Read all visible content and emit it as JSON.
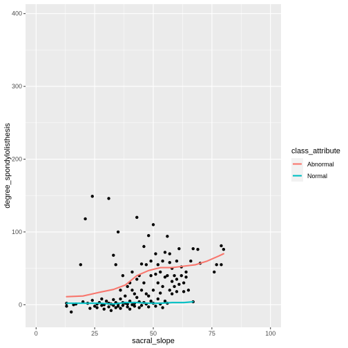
{
  "chart_data": {
    "type": "scatter",
    "xlabel": "sacral_slope",
    "ylabel": "degree_spondylolisthesis",
    "xlim": [
      -4.5,
      104.5
    ],
    "ylim": [
      -31,
      413
    ],
    "x_ticks": [
      0,
      25,
      50,
      75,
      100
    ],
    "x_tick_labels": [
      "0",
      "25",
      "50",
      "75",
      "100"
    ],
    "y_ticks": [
      0,
      100,
      200,
      300,
      400
    ],
    "y_tick_labels": [
      "0",
      "100",
      "200",
      "300",
      "400"
    ],
    "grid": true,
    "legend": {
      "title": "class_attribute",
      "placement": "right",
      "entries": [
        "Abnormal",
        "Normal"
      ]
    },
    "points": [
      [
        13,
        -2
      ],
      [
        13,
        2
      ],
      [
        15,
        -10
      ],
      [
        16,
        0
      ],
      [
        17,
        1
      ],
      [
        19,
        55
      ],
      [
        20,
        4
      ],
      [
        21,
        118
      ],
      [
        22,
        2
      ],
      [
        23,
        -5
      ],
      [
        24,
        149
      ],
      [
        24,
        6
      ],
      [
        25,
        -2
      ],
      [
        26,
        1
      ],
      [
        26,
        -4
      ],
      [
        27,
        3
      ],
      [
        28,
        -1
      ],
      [
        28,
        8
      ],
      [
        29,
        0
      ],
      [
        29,
        -6
      ],
      [
        30,
        5
      ],
      [
        31,
        146
      ],
      [
        31,
        2
      ],
      [
        31,
        -3
      ],
      [
        32,
        -8
      ],
      [
        32,
        1
      ],
      [
        33,
        68
      ],
      [
        33,
        7
      ],
      [
        33,
        -1
      ],
      [
        34,
        3
      ],
      [
        34,
        -4
      ],
      [
        34,
        55
      ],
      [
        35,
        1
      ],
      [
        35,
        100
      ],
      [
        35,
        -2
      ],
      [
        36,
        8
      ],
      [
        36,
        20
      ],
      [
        36,
        -5
      ],
      [
        37,
        3
      ],
      [
        37,
        40
      ],
      [
        37,
        -1
      ],
      [
        38,
        12
      ],
      [
        38,
        2
      ],
      [
        39,
        -3
      ],
      [
        39,
        25
      ],
      [
        39,
        1
      ],
      [
        40,
        30
      ],
      [
        40,
        -6
      ],
      [
        40,
        5
      ],
      [
        41,
        45
      ],
      [
        41,
        0
      ],
      [
        41,
        20
      ],
      [
        42,
        2
      ],
      [
        42,
        15
      ],
      [
        42,
        -2
      ],
      [
        43,
        10
      ],
      [
        43,
        120
      ],
      [
        43,
        35
      ],
      [
        44,
        4
      ],
      [
        44,
        40
      ],
      [
        44,
        -4
      ],
      [
        45,
        20
      ],
      [
        45,
        56
      ],
      [
        45,
        -1
      ],
      [
        46,
        30
      ],
      [
        46,
        80
      ],
      [
        46,
        3
      ],
      [
        47,
        15
      ],
      [
        47,
        55
      ],
      [
        47,
        1
      ],
      [
        48,
        12
      ],
      [
        48,
        95
      ],
      [
        48,
        -3
      ],
      [
        49,
        40
      ],
      [
        49,
        60
      ],
      [
        49,
        5
      ],
      [
        50,
        20
      ],
      [
        50,
        110
      ],
      [
        50,
        2
      ],
      [
        51,
        42
      ],
      [
        51,
        70
      ],
      [
        51,
        -2
      ],
      [
        52,
        30
      ],
      [
        52,
        55
      ],
      [
        52,
        8
      ],
      [
        53,
        16
      ],
      [
        53,
        45
      ],
      [
        53,
        1
      ],
      [
        54,
        60
      ],
      [
        54,
        25
      ],
      [
        54,
        -4
      ],
      [
        55,
        72
      ],
      [
        55,
        38
      ],
      [
        55,
        5
      ],
      [
        56,
        40
      ],
      [
        56,
        94
      ],
      [
        56,
        2
      ],
      [
        57,
        20
      ],
      [
        57,
        58
      ],
      [
        57,
        70
      ],
      [
        58,
        32
      ],
      [
        58,
        15
      ],
      [
        58,
        50
      ],
      [
        59,
        40
      ],
      [
        59,
        25
      ],
      [
        60,
        35
      ],
      [
        60,
        60
      ],
      [
        60,
        18
      ],
      [
        61,
        77
      ],
      [
        61,
        28
      ],
      [
        62,
        40
      ],
      [
        62,
        52
      ],
      [
        63,
        30
      ],
      [
        63,
        18
      ],
      [
        64,
        45
      ],
      [
        64,
        38
      ],
      [
        65,
        20
      ],
      [
        66,
        60
      ],
      [
        67,
        4
      ],
      [
        67,
        77
      ],
      [
        69,
        76
      ],
      [
        70,
        57
      ],
      [
        76,
        45
      ],
      [
        77,
        55
      ],
      [
        79,
        81
      ],
      [
        79,
        55
      ],
      [
        80,
        76
      ]
    ],
    "series": [
      {
        "name": "Abnormal",
        "color": "#F8766D",
        "x": [
          13,
          20,
          27,
          33,
          38,
          43,
          48,
          53,
          58,
          63,
          68,
          73,
          78,
          80
        ],
        "y": [
          11,
          12,
          17,
          21,
          27,
          40,
          47,
          51,
          51,
          53,
          55,
          60,
          67,
          70
        ]
      },
      {
        "name": "Normal",
        "color": "#00BFC4",
        "x": [
          13,
          20,
          27,
          33,
          38,
          43,
          48,
          53,
          58,
          63,
          67
        ],
        "y": [
          2,
          2,
          2,
          1,
          3,
          3,
          2,
          2,
          3,
          3,
          4
        ]
      }
    ]
  }
}
